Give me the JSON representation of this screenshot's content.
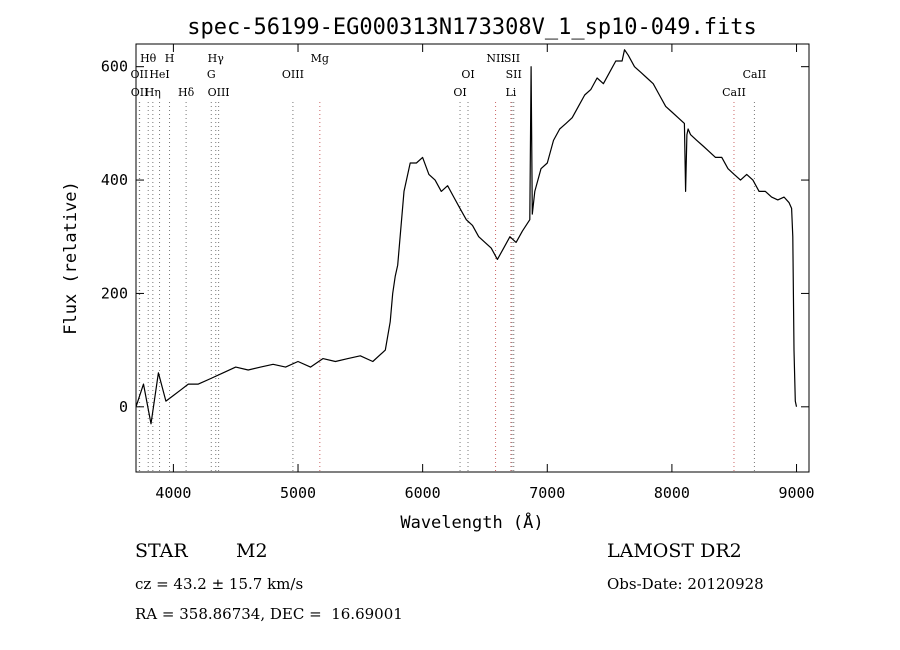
{
  "chart_data": {
    "type": "line",
    "title": "spec-56199-EG000313N173308V_1_sp10-049.fits",
    "xlabel": "Wavelength (Å)",
    "ylabel": "Flux (relative)",
    "xlim": [
      3700,
      9100
    ],
    "ylim": [
      -115,
      640
    ],
    "xticks": [
      4000,
      5000,
      6000,
      7000,
      8000,
      9000
    ],
    "yticks": [
      0,
      200,
      400,
      600
    ],
    "grid": false,
    "series": [
      {
        "color": "#000000",
        "x": [
          3700,
          3760,
          3820,
          3880,
          3940,
          4000,
          4060,
          4120,
          4200,
          4300,
          4400,
          4500,
          4600,
          4700,
          4800,
          4900,
          5000,
          5100,
          5200,
          5300,
          5400,
          5500,
          5600,
          5700,
          5740,
          5760,
          5780,
          5800,
          5850,
          5900,
          5950,
          6000,
          6050,
          6100,
          6150,
          6200,
          6250,
          6300,
          6350,
          6400,
          6450,
          6500,
          6550,
          6600,
          6650,
          6700,
          6750,
          6800,
          6860,
          6870,
          6880,
          6900,
          6950,
          7000,
          7050,
          7100,
          7150,
          7200,
          7250,
          7300,
          7350,
          7400,
          7450,
          7500,
          7550,
          7600,
          7620,
          7650,
          7700,
          7750,
          7800,
          7850,
          7900,
          7950,
          8000,
          8050,
          8100,
          8110,
          8120,
          8130,
          8150,
          8200,
          8250,
          8300,
          8350,
          8400,
          8450,
          8500,
          8550,
          8600,
          8650,
          8700,
          8750,
          8800,
          8850,
          8900,
          8940,
          8960,
          8970,
          8980,
          8990,
          9000
        ],
        "y": [
          0,
          40,
          -30,
          60,
          10,
          20,
          30,
          40,
          40,
          50,
          60,
          70,
          65,
          70,
          75,
          70,
          80,
          70,
          85,
          80,
          85,
          90,
          80,
          100,
          150,
          200,
          230,
          250,
          380,
          430,
          430,
          440,
          410,
          400,
          380,
          390,
          370,
          350,
          330,
          320,
          300,
          290,
          280,
          260,
          280,
          300,
          290,
          310,
          330,
          600,
          340,
          380,
          420,
          430,
          470,
          490,
          500,
          510,
          530,
          550,
          560,
          580,
          570,
          590,
          610,
          610,
          630,
          620,
          600,
          590,
          580,
          570,
          550,
          530,
          520,
          510,
          500,
          380,
          480,
          490,
          480,
          470,
          460,
          450,
          440,
          440,
          420,
          410,
          400,
          410,
          400,
          380,
          380,
          370,
          365,
          370,
          360,
          350,
          300,
          100,
          10,
          0
        ]
      }
    ],
    "lines": [
      {
        "name": "Hθ",
        "wave": 3798,
        "color": "#777777",
        "row": 1
      },
      {
        "name": "OII",
        "wave": 3727,
        "color": "#777777",
        "row": 2
      },
      {
        "name": "OII",
        "wave": 3729,
        "color": "#777777",
        "row": 3
      },
      {
        "name": "H",
        "wave": 3969,
        "color": "#777777",
        "row": 1
      },
      {
        "name": "HeI",
        "wave": 3889,
        "color": "#777777",
        "row": 2
      },
      {
        "name": "Hη",
        "wave": 3835,
        "color": "#777777",
        "row": 3
      },
      {
        "name": "Hδ",
        "wave": 4102,
        "color": "#777777",
        "row": 3
      },
      {
        "name": "Hγ",
        "wave": 4340,
        "color": "#777777",
        "row": 1
      },
      {
        "name": "G",
        "wave": 4304,
        "color": "#777777",
        "row": 2
      },
      {
        "name": "OIII",
        "wave": 4363,
        "color": "#777777",
        "row": 3
      },
      {
        "name": "OIII",
        "wave": 4959,
        "color": "#777777",
        "row": 2
      },
      {
        "name": "Mg",
        "wave": 5175,
        "color": "#cc6666",
        "row": 1
      },
      {
        "name": "OI",
        "wave": 6364,
        "color": "#777777",
        "row": 2
      },
      {
        "name": "OI",
        "wave": 6300,
        "color": "#777777",
        "row": 3
      },
      {
        "name": "NII",
        "wave": 6585,
        "color": "#cc6666",
        "row": 1
      },
      {
        "name": "SII",
        "wave": 6717,
        "color": "#777777",
        "row": 1
      },
      {
        "name": "SII",
        "wave": 6731,
        "color": "#777777",
        "row": 2
      },
      {
        "name": "Li",
        "wave": 6708,
        "color": "#cc6666",
        "row": 3
      },
      {
        "name": "CaII",
        "wave": 8662,
        "color": "#777777",
        "row": 2
      },
      {
        "name": "CaII",
        "wave": 8498,
        "color": "#cc6666",
        "row": 3
      }
    ]
  },
  "info": {
    "class_label": "STAR",
    "subclass": "M2",
    "survey": "LAMOST DR2",
    "cz_text": "cz = 43.2 ± 15.7 km/s",
    "obs_date": "Obs-Date: 20120928",
    "coords": "RA = 358.86734, DEC =  16.69001"
  }
}
